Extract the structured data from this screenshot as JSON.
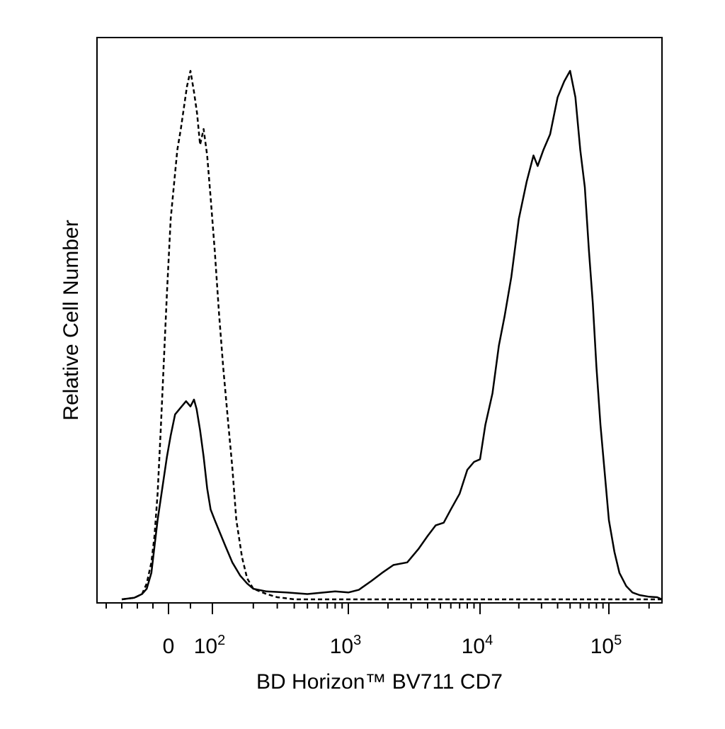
{
  "chart_data": {
    "type": "line",
    "xlabel": "BD Horizon™ BV711 CD7",
    "ylabel": "Relative Cell Number",
    "x_scale": "biexponential (linear near 0, log above ~10^2)",
    "xlim": [
      -200,
      250000
    ],
    "ylim": [
      0,
      100
    ],
    "grid": false,
    "legend": "none",
    "x_tick_labels": [
      {
        "value": 0,
        "base": "0",
        "exp": ""
      },
      {
        "value": 100,
        "base": "10",
        "exp": "2"
      },
      {
        "value": 1000,
        "base": "10",
        "exp": "3"
      },
      {
        "value": 10000,
        "base": "10",
        "exp": "4"
      },
      {
        "value": 100000,
        "base": "10",
        "exp": "5"
      }
    ],
    "series": [
      {
        "style": "dashed",
        "points": [
          [
            -150,
            0
          ],
          [
            -110,
            0.3
          ],
          [
            -85,
            1
          ],
          [
            -70,
            3
          ],
          [
            -55,
            7
          ],
          [
            -45,
            12
          ],
          [
            -35,
            20
          ],
          [
            -25,
            32
          ],
          [
            -15,
            45
          ],
          [
            -5,
            58
          ],
          [
            5,
            72
          ],
          [
            12,
            78
          ],
          [
            20,
            85
          ],
          [
            28,
            89
          ],
          [
            35,
            93
          ],
          [
            42,
            97
          ],
          [
            50,
            100
          ],
          [
            58,
            96
          ],
          [
            65,
            92
          ],
          [
            72,
            86
          ],
          [
            80,
            89
          ],
          [
            88,
            84
          ],
          [
            96,
            76
          ],
          [
            104,
            66
          ],
          [
            112,
            54
          ],
          [
            120,
            44
          ],
          [
            130,
            34
          ],
          [
            140,
            25
          ],
          [
            150,
            15
          ],
          [
            165,
            8
          ],
          [
            180,
            4
          ],
          [
            200,
            2
          ],
          [
            250,
            1
          ],
          [
            300,
            0.4
          ],
          [
            350,
            0.2
          ],
          [
            400,
            0
          ],
          [
            2000,
            0
          ],
          [
            250000,
            0
          ]
        ]
      },
      {
        "style": "solid",
        "points": [
          [
            -150,
            0
          ],
          [
            -110,
            0.3
          ],
          [
            -85,
            1
          ],
          [
            -70,
            2
          ],
          [
            -55,
            5
          ],
          [
            -45,
            10
          ],
          [
            -35,
            15
          ],
          [
            -25,
            19
          ],
          [
            -15,
            23
          ],
          [
            -5,
            27
          ],
          [
            5,
            31
          ],
          [
            15,
            35
          ],
          [
            30,
            36.5
          ],
          [
            40,
            37.5
          ],
          [
            50,
            36.5
          ],
          [
            58,
            37.8
          ],
          [
            64,
            36
          ],
          [
            72,
            32
          ],
          [
            80,
            27
          ],
          [
            88,
            21
          ],
          [
            96,
            17
          ],
          [
            104,
            15
          ],
          [
            112,
            13
          ],
          [
            125,
            10
          ],
          [
            140,
            7
          ],
          [
            160,
            4.5
          ],
          [
            180,
            3
          ],
          [
            200,
            2
          ],
          [
            250,
            1.5
          ],
          [
            350,
            1.3
          ],
          [
            500,
            1
          ],
          [
            800,
            1.5
          ],
          [
            1000,
            1.3
          ],
          [
            1200,
            1.8
          ],
          [
            1500,
            3.5
          ],
          [
            1800,
            5
          ],
          [
            2200,
            6.5
          ],
          [
            2800,
            7
          ],
          [
            3400,
            9.5
          ],
          [
            4000,
            12
          ],
          [
            4600,
            14
          ],
          [
            5300,
            14.5
          ],
          [
            6000,
            17
          ],
          [
            7000,
            20
          ],
          [
            8000,
            24.5
          ],
          [
            9000,
            26
          ],
          [
            10000,
            26.5
          ],
          [
            11000,
            33
          ],
          [
            12500,
            39
          ],
          [
            14000,
            48
          ],
          [
            15500,
            53.5
          ],
          [
            17500,
            61
          ],
          [
            20000,
            72
          ],
          [
            23000,
            79
          ],
          [
            26000,
            84
          ],
          [
            28000,
            82
          ],
          [
            31000,
            85
          ],
          [
            35000,
            88
          ],
          [
            40000,
            95
          ],
          [
            45000,
            98
          ],
          [
            50000,
            100
          ],
          [
            55000,
            95
          ],
          [
            60000,
            85
          ],
          [
            65000,
            78
          ],
          [
            70000,
            66
          ],
          [
            75000,
            56
          ],
          [
            80000,
            44
          ],
          [
            86000,
            33
          ],
          [
            92000,
            25
          ],
          [
            100000,
            15
          ],
          [
            110000,
            9
          ],
          [
            120000,
            5
          ],
          [
            135000,
            2.5
          ],
          [
            150000,
            1.3
          ],
          [
            170000,
            0.8
          ],
          [
            200000,
            0.5
          ],
          [
            230000,
            0.4
          ],
          [
            250000,
            0
          ]
        ]
      }
    ]
  }
}
